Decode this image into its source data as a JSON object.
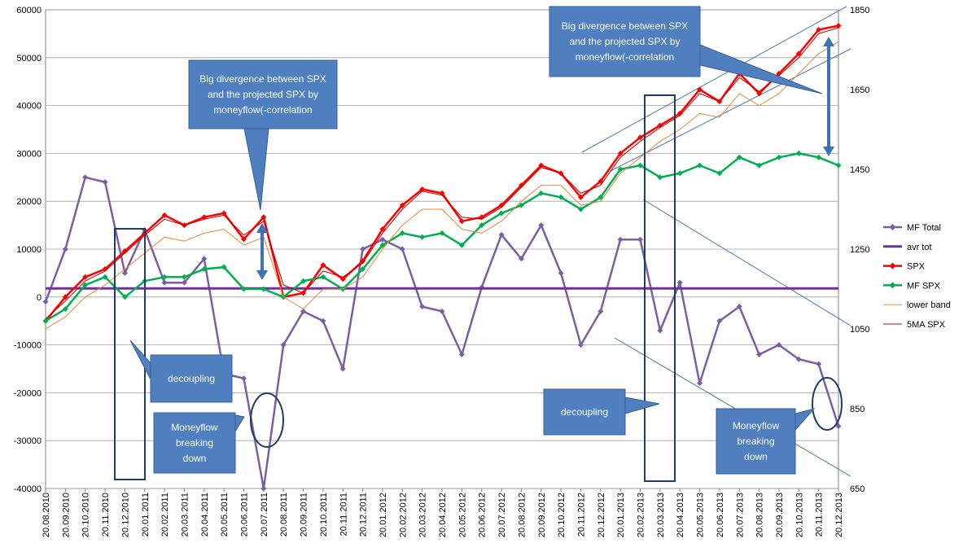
{
  "chart_data": {
    "type": "line",
    "x": [
      "20.08.2010",
      "20.09.2010",
      "20.10.2010",
      "20.11.2010",
      "20.12.2010",
      "20.01.2011",
      "20.02.2011",
      "20.03.2011",
      "20.04.2011",
      "20.05.2011",
      "20.06.2011",
      "20.07.2011",
      "20.08.2011",
      "20.09.2011",
      "20.10.2011",
      "20.11.2011",
      "20.12.2011",
      "20.01.2012",
      "20.02.2012",
      "20.03.2012",
      "20.04.2012",
      "20.05.2012",
      "20.06.2012",
      "20.07.2012",
      "20.08.2012",
      "20.09.2012",
      "20.10.2012",
      "20.11.2012",
      "20.12.2012",
      "20.01.2013",
      "20.02.2013",
      "20.03.2013",
      "20.04.2013",
      "20.05.2013",
      "20.06.2013",
      "20.07.2013",
      "20.08.2013",
      "20.09.2013",
      "20.10.2013",
      "20.11.2013",
      "20.12.2013"
    ],
    "y_left_ticks": [
      "60000",
      "50000",
      "40000",
      "30000",
      "20000",
      "10000",
      "0",
      "-10000",
      "-20000",
      "-30000",
      "-40000"
    ],
    "y_left_lim": [
      -40000,
      60000
    ],
    "y_right_ticks": [
      "1850",
      "1650",
      "1450",
      "1250",
      "1050",
      "850",
      "650"
    ],
    "y_right_lim": [
      650,
      1850
    ],
    "grid": true,
    "legend_position": "right",
    "series": [
      {
        "name": "MF Total",
        "axis": "left",
        "color": "#7b5fa2",
        "marker": "diamond",
        "values": [
          -1000,
          10000,
          25000,
          24000,
          5000,
          14000,
          3000,
          3000,
          8000,
          -16000,
          -17000,
          -40000,
          -10000,
          -3000,
          -5000,
          -15000,
          10000,
          12000,
          10000,
          -2000,
          -3000,
          -12000,
          2000,
          13000,
          8000,
          15000,
          5000,
          -10000,
          -3000,
          12000,
          12000,
          -7000,
          3000,
          -18000,
          -5000,
          -2000,
          -12000,
          -10000,
          -13000,
          -14000,
          -27000
        ]
      },
      {
        "name": "avr tot",
        "axis": "left",
        "color": "#7030a0",
        "marker": "none",
        "values": [
          1800,
          1800,
          1800,
          1800,
          1800,
          1800,
          1800,
          1800,
          1800,
          1800,
          1800,
          1800,
          1800,
          1800,
          1800,
          1800,
          1800,
          1800,
          1800,
          1800,
          1800,
          1800,
          1800,
          1800,
          1800,
          1800,
          1800,
          1800,
          1800,
          1800,
          1800,
          1800,
          1800,
          1800,
          1800,
          1800,
          1800,
          1800,
          1800,
          1800,
          1800
        ]
      },
      {
        "name": "SPX",
        "axis": "right",
        "color": "#ff0000",
        "marker": "diamond",
        "values": [
          1070,
          1130,
          1180,
          1200,
          1245,
          1290,
          1335,
          1310,
          1330,
          1340,
          1275,
          1330,
          1130,
          1140,
          1210,
          1175,
          1220,
          1300,
          1360,
          1400,
          1390,
          1320,
          1330,
          1360,
          1410,
          1460,
          1440,
          1380,
          1420,
          1490,
          1530,
          1560,
          1590,
          1650,
          1620,
          1690,
          1640,
          1690,
          1740,
          1800,
          1810
        ]
      },
      {
        "name": "MF SPX",
        "axis": "right",
        "color": "#00b050",
        "marker": "diamond",
        "values": [
          1070,
          1100,
          1160,
          1180,
          1130,
          1170,
          1180,
          1180,
          1200,
          1205,
          1150,
          1150,
          1130,
          1170,
          1180,
          1150,
          1200,
          1260,
          1290,
          1280,
          1290,
          1260,
          1310,
          1340,
          1360,
          1390,
          1380,
          1350,
          1380,
          1450,
          1460,
          1430,
          1440,
          1460,
          1440,
          1480,
          1460,
          1480,
          1490,
          1480,
          1460
        ]
      },
      {
        "name": "lower band",
        "axis": "right",
        "color": "#e28a3c",
        "marker": "none",
        "values": [
          1050,
          1080,
          1130,
          1160,
          1200,
          1240,
          1280,
          1270,
          1290,
          1300,
          1260,
          1280,
          1130,
          1100,
          1150,
          1150,
          1180,
          1250,
          1310,
          1350,
          1350,
          1300,
          1290,
          1320,
          1370,
          1410,
          1410,
          1360,
          1370,
          1440,
          1480,
          1520,
          1550,
          1590,
          1580,
          1640,
          1610,
          1640,
          1690,
          1740,
          1770
        ]
      },
      {
        "name": "5MA SPX",
        "axis": "right",
        "color": "#c00000",
        "marker": "none",
        "values": [
          1075,
          1120,
          1170,
          1195,
          1240,
          1285,
          1325,
          1310,
          1325,
          1335,
          1285,
          1320,
          1160,
          1140,
          1195,
          1180,
          1215,
          1290,
          1350,
          1395,
          1385,
          1330,
          1325,
          1355,
          1405,
          1455,
          1440,
          1390,
          1410,
          1480,
          1520,
          1555,
          1585,
          1640,
          1620,
          1680,
          1645,
          1685,
          1730,
          1790,
          1805
        ]
      }
    ],
    "annotations": [
      {
        "label": "Big divergence between SPX and the projected SPX by moneyflow(-correlation",
        "lines": [
          "Big divergence between SPX",
          "and the projected SPX by",
          "moneyflow(-correlation"
        ]
      },
      {
        "label": "Big divergence between SPX and the projected SPX by moneyflow(-correlation",
        "lines": [
          "Big divergence between SPX",
          "and the projected SPX by",
          "moneyflow(-correlation"
        ]
      },
      {
        "label": "decoupling",
        "lines": [
          "decoupling"
        ]
      },
      {
        "label": "decoupling",
        "lines": [
          "decoupling"
        ]
      },
      {
        "label": "Moneyflow breaking down",
        "lines": [
          "Moneyflow",
          "breaking",
          "down"
        ]
      },
      {
        "label": "Moneyflow breaking down",
        "lines": [
          "Moneyflow",
          "breaking",
          "down"
        ]
      }
    ],
    "colors": {
      "callout_fill": "#4f7fbf",
      "callout_stroke": "#3a5f95",
      "box_stroke": "#1f3d66",
      "trend_line": "#4a78b8",
      "arrow": "#3f73b5",
      "gridline": "#a0a0a0"
    }
  }
}
